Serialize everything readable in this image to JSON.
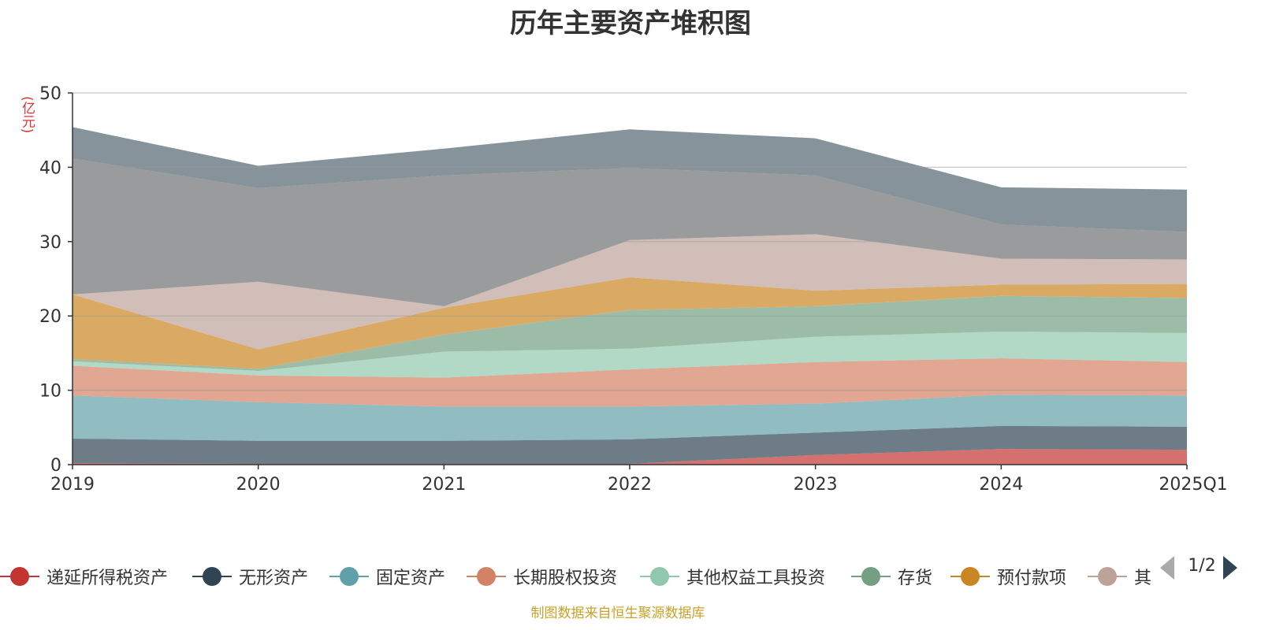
{
  "chart_data": {
    "type": "area",
    "stacked": true,
    "title": "历年主要资产堆积图",
    "y_unit": "(亿元)",
    "categories": [
      "2019",
      "2020",
      "2021",
      "2022",
      "2023",
      "2024",
      "2025Q1"
    ],
    "ylim": [
      0,
      50
    ],
    "yticks": [
      0,
      10,
      20,
      30,
      40,
      50
    ],
    "grid": true,
    "legend_position": "bottom",
    "series": [
      {
        "name": "递延所得税资产",
        "color": "#c23531",
        "values": [
          0.2,
          0.1,
          0.1,
          0.1,
          1.3,
          2.1,
          2.0
        ]
      },
      {
        "name": "无形资产",
        "color": "#2f4554",
        "values": [
          3.3,
          3.1,
          3.1,
          3.3,
          3.0,
          3.1,
          3.1
        ]
      },
      {
        "name": "固定资产",
        "color": "#61a0a8",
        "values": [
          5.8,
          5.2,
          4.6,
          4.4,
          3.9,
          4.2,
          4.2
        ]
      },
      {
        "name": "长期股权投资",
        "color": "#d48265",
        "values": [
          4.0,
          3.6,
          3.9,
          5.0,
          5.6,
          4.9,
          4.5
        ]
      },
      {
        "name": "其他权益工具投资",
        "color": "#91c7ae",
        "values": [
          0.6,
          0.6,
          3.5,
          2.8,
          3.4,
          3.6,
          3.9
        ]
      },
      {
        "name": "存货",
        "color": "#749f83",
        "values": [
          0.3,
          0.3,
          2.3,
          5.2,
          4.1,
          4.8,
          4.7
        ]
      },
      {
        "name": "预付款项",
        "color": "#ca8622",
        "values": [
          8.7,
          2.6,
          3.6,
          4.4,
          2.1,
          1.5,
          1.9
        ]
      },
      {
        "name": "其他",
        "color": "#bda29a",
        "values": [
          0.0,
          9.1,
          0.2,
          5.0,
          7.6,
          3.5,
          3.3
        ]
      },
      {
        "name": "",
        "color": "#6e7074",
        "values": [
          18.3,
          12.6,
          17.6,
          9.7,
          7.9,
          4.6,
          3.7
        ]
      },
      {
        "name": "",
        "color": "#546570",
        "values": [
          4.2,
          3.0,
          3.6,
          5.2,
          5.0,
          5.0,
          5.7
        ]
      }
    ]
  },
  "legend": {
    "visible_labels": [
      "递延所得税资产",
      "无形资产",
      "固定资产",
      "长期股权投资",
      "其他权益工具投资",
      "存货",
      "预付款项",
      "其"
    ],
    "page_text": "1/2"
  },
  "footer": {
    "source": "制图数据来自恒生聚源数据库"
  }
}
